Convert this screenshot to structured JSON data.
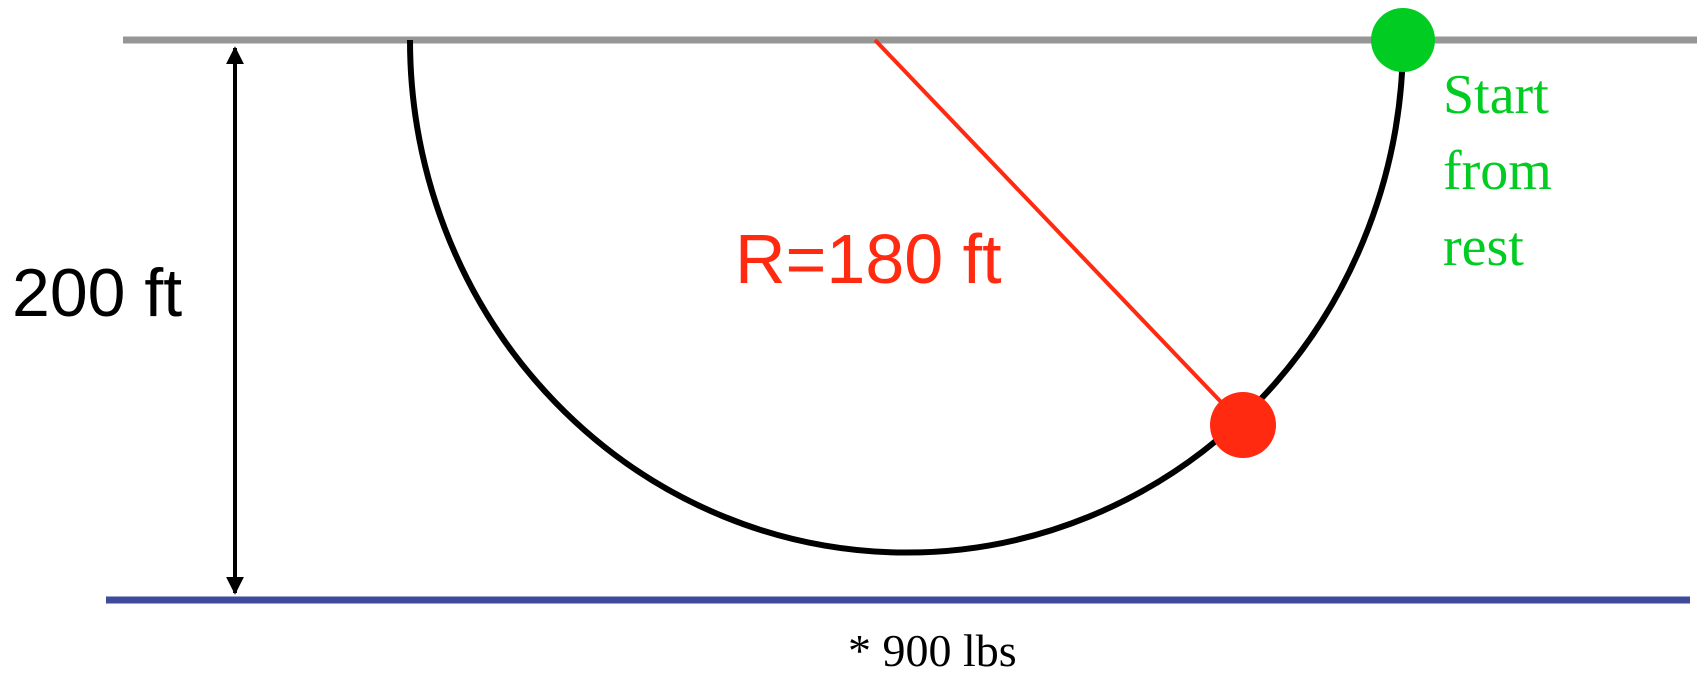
{
  "height_label": "200 ft",
  "radius_label": "R=180 ft",
  "start_label_lines": [
    "Start",
    "from",
    "rest"
  ],
  "mass_label": "* 900 lbs",
  "colors": {
    "top_line": "#969696",
    "ground_line": "#3f4a9b",
    "track": "#000000",
    "radius_line": "#ff2a10",
    "start_ball": "#00cc22",
    "moving_ball": "#ff2a10",
    "start_text": "#00cc22",
    "radius_text": "#ff2a10",
    "dimension": "#000000",
    "mass_text": "#000000"
  }
}
